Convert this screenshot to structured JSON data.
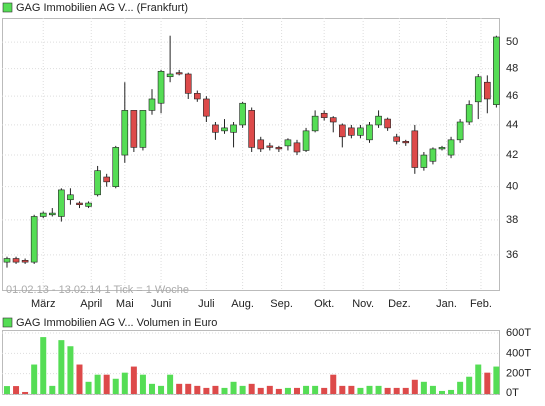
{
  "chart_data": [
    {
      "type": "candlestick",
      "title": "GAG Immobilien AG V... (Frankfurt)",
      "annotation": "01.02.13 - 13.02.14   1 Tick = 1 Woche",
      "up_color": "#55dd55",
      "down_color": "#dd4a4a",
      "log_scale": true,
      "grid": true,
      "xlim": [
        -0.55,
        54.4
      ],
      "xticks": [
        {
          "value": 4,
          "label": "März"
        },
        {
          "value": 9.3,
          "label": "April"
        },
        {
          "value": 13,
          "label": "Mai"
        },
        {
          "value": 17,
          "label": "Juni"
        },
        {
          "value": 22,
          "label": "Juli"
        },
        {
          "value": 26,
          "label": "Aug."
        },
        {
          "value": 30.3,
          "label": "Sep."
        },
        {
          "value": 35,
          "label": "Okt."
        },
        {
          "value": 39.3,
          "label": "Nov."
        },
        {
          "value": 43.3,
          "label": "Dez."
        },
        {
          "value": 48.5,
          "label": "Jan."
        },
        {
          "value": 52.3,
          "label": "Feb."
        }
      ],
      "ylim": [
        34.1,
        51.9
      ],
      "yticks": [
        36,
        38,
        40,
        42,
        44,
        46,
        48,
        50
      ],
      "open": [
        35.6,
        35.8,
        35.7,
        35.6,
        38.2,
        38.3,
        38.2,
        39.2,
        39.0,
        38.8,
        39.5,
        40.6,
        40.0,
        42.0,
        45.0,
        42.5,
        45.0,
        45.5,
        47.4,
        47.7,
        47.6,
        46.2,
        45.8,
        44.0,
        43.6,
        43.5,
        44.0,
        45.0,
        43.0,
        42.6,
        42.5,
        42.6,
        42.8,
        42.3,
        43.6,
        44.8,
        44.5,
        44.0,
        43.8,
        43.3,
        43.0,
        44.0,
        44.4,
        43.2,
        42.9,
        43.6,
        41.2,
        41.6,
        42.4,
        42.0,
        43.0,
        44.2,
        45.6,
        47.0,
        45.4
      ],
      "high": [
        35.9,
        35.9,
        35.8,
        38.3,
        38.5,
        38.7,
        39.9,
        39.9,
        39.1,
        39.1,
        41.3,
        40.8,
        42.6,
        47.0,
        45.0,
        45.0,
        46.5,
        47.9,
        50.5,
        47.9,
        47.7,
        46.4,
        46.0,
        44.2,
        44.4,
        44.2,
        45.6,
        45.2,
        43.2,
        42.8,
        42.6,
        43.1,
        43.0,
        43.8,
        45.0,
        45.0,
        44.6,
        44.1,
        44.0,
        44.0,
        44.2,
        45.0,
        44.5,
        43.4,
        43.0,
        44.0,
        42.2,
        42.5,
        42.6,
        43.2,
        44.4,
        45.7,
        47.6,
        47.5,
        50.5
      ],
      "low": [
        35.3,
        35.5,
        35.5,
        35.5,
        38.1,
        38.2,
        37.9,
        38.9,
        38.7,
        38.7,
        39.4,
        40.0,
        39.9,
        41.5,
        42.2,
        42.3,
        44.7,
        44.8,
        47.0,
        47.5,
        45.8,
        45.6,
        44.2,
        43.0,
        43.4,
        42.5,
        43.8,
        42.2,
        42.2,
        42.3,
        42.2,
        42.3,
        42.0,
        42.2,
        43.5,
        44.3,
        43.5,
        42.5,
        43.1,
        43.1,
        42.8,
        43.8,
        43.6,
        42.7,
        42.6,
        40.8,
        41.0,
        41.4,
        42.3,
        41.8,
        42.8,
        44.0,
        44.4,
        44.8,
        45.2
      ],
      "close": [
        35.8,
        35.6,
        35.6,
        38.2,
        38.4,
        38.4,
        39.8,
        39.5,
        38.9,
        39.0,
        41.0,
        40.3,
        42.5,
        45.0,
        42.5,
        45.0,
        45.8,
        47.8,
        47.6,
        47.6,
        46.2,
        45.8,
        44.6,
        43.5,
        43.8,
        44.0,
        45.5,
        42.5,
        42.4,
        42.5,
        42.4,
        43.0,
        42.2,
        43.6,
        44.6,
        44.5,
        44.2,
        43.2,
        43.3,
        43.8,
        44.0,
        44.6,
        43.8,
        42.9,
        42.8,
        41.2,
        42.0,
        42.4,
        42.5,
        43.0,
        44.2,
        45.4,
        47.4,
        45.8,
        50.4
      ]
    },
    {
      "type": "volume",
      "title": "GAG Immobilien AG V... Volumen in Euro",
      "grid": true,
      "ylim": [
        0,
        620
      ],
      "yticks": [
        {
          "value": 0,
          "label": "0T"
        },
        {
          "value": 200,
          "label": "200T"
        },
        {
          "value": 400,
          "label": "400T"
        },
        {
          "value": 600,
          "label": "600T"
        }
      ],
      "values": [
        78,
        78,
        20,
        290,
        560,
        80,
        530,
        470,
        290,
        120,
        190,
        190,
        150,
        210,
        270,
        190,
        100,
        80,
        190,
        100,
        100,
        80,
        60,
        80,
        60,
        120,
        80,
        100,
        60,
        80,
        50,
        60,
        60,
        80,
        80,
        60,
        190,
        80,
        80,
        60,
        80,
        80,
        60,
        60,
        60,
        140,
        120,
        80,
        30,
        40,
        120,
        170,
        290,
        210,
        270
      ]
    }
  ]
}
